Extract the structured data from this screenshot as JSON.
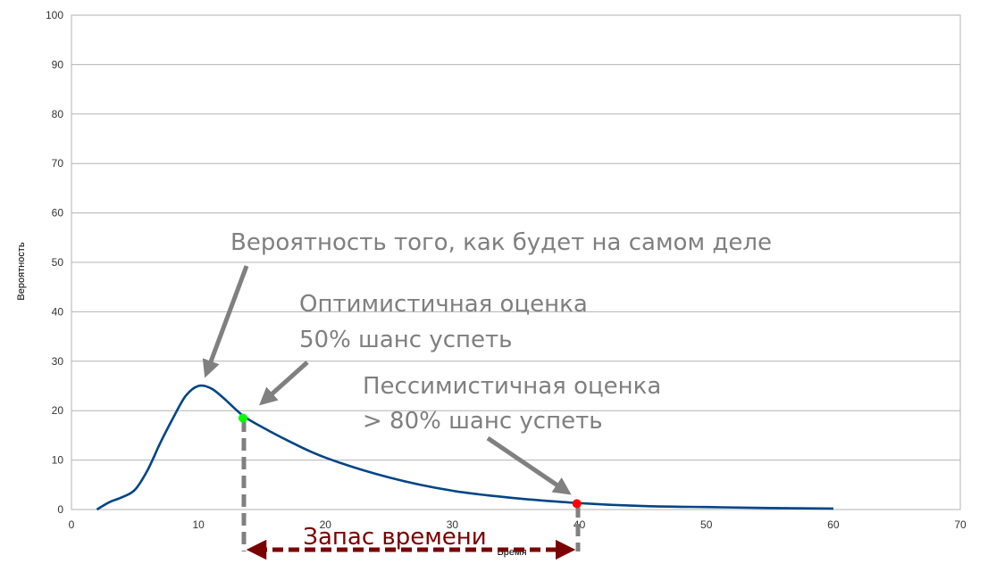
{
  "chart_data": {
    "type": "line",
    "xlabel": "Время",
    "ylabel": "Вероятность",
    "xlim": [
      0,
      70
    ],
    "ylim": [
      0,
      100
    ],
    "x_ticks": [
      0,
      10,
      20,
      30,
      40,
      50,
      60,
      70
    ],
    "y_ticks": [
      0,
      10,
      20,
      30,
      40,
      50,
      60,
      70,
      80,
      90,
      100
    ],
    "grid": "horizontal",
    "series": [
      {
        "color": "#004586",
        "points": [
          [
            2,
            0
          ],
          [
            3,
            1.5
          ],
          [
            4,
            2.5
          ],
          [
            5,
            4
          ],
          [
            6,
            8
          ],
          [
            7,
            13.5
          ],
          [
            8,
            18.5
          ],
          [
            9,
            23
          ],
          [
            10,
            25
          ],
          [
            11,
            24.5
          ],
          [
            12,
            22.5
          ],
          [
            13.5,
            19
          ],
          [
            15,
            16.7
          ],
          [
            17,
            14
          ],
          [
            20,
            10.5
          ],
          [
            25,
            6.5
          ],
          [
            30,
            3.8
          ],
          [
            35,
            2.3
          ],
          [
            40,
            1.3
          ],
          [
            45,
            0.7
          ],
          [
            50,
            0.5
          ],
          [
            55,
            0.3
          ],
          [
            60,
            0.2
          ]
        ]
      }
    ],
    "markers": [
      {
        "x": 13.5,
        "y": 18.5,
        "color": "#00ff00"
      },
      {
        "x": 39.8,
        "y": 1.2,
        "color": "#ff0000"
      }
    ],
    "annotations": {
      "probability": "Вероятность того, как будет на самом деле",
      "optimistic_line1": "Оптимистичная оценка",
      "optimistic_line2": "50% шанс успеть",
      "pessimistic_line1": "Пессимистичная оценка",
      "pessimistic_line2": "> 80% шанс успеть",
      "time_buffer": "Запас времени"
    },
    "colors": {
      "curve": "#004586",
      "arrows": "#808080",
      "buffer": "#7b0000",
      "grid": "#b3b3b3"
    }
  }
}
